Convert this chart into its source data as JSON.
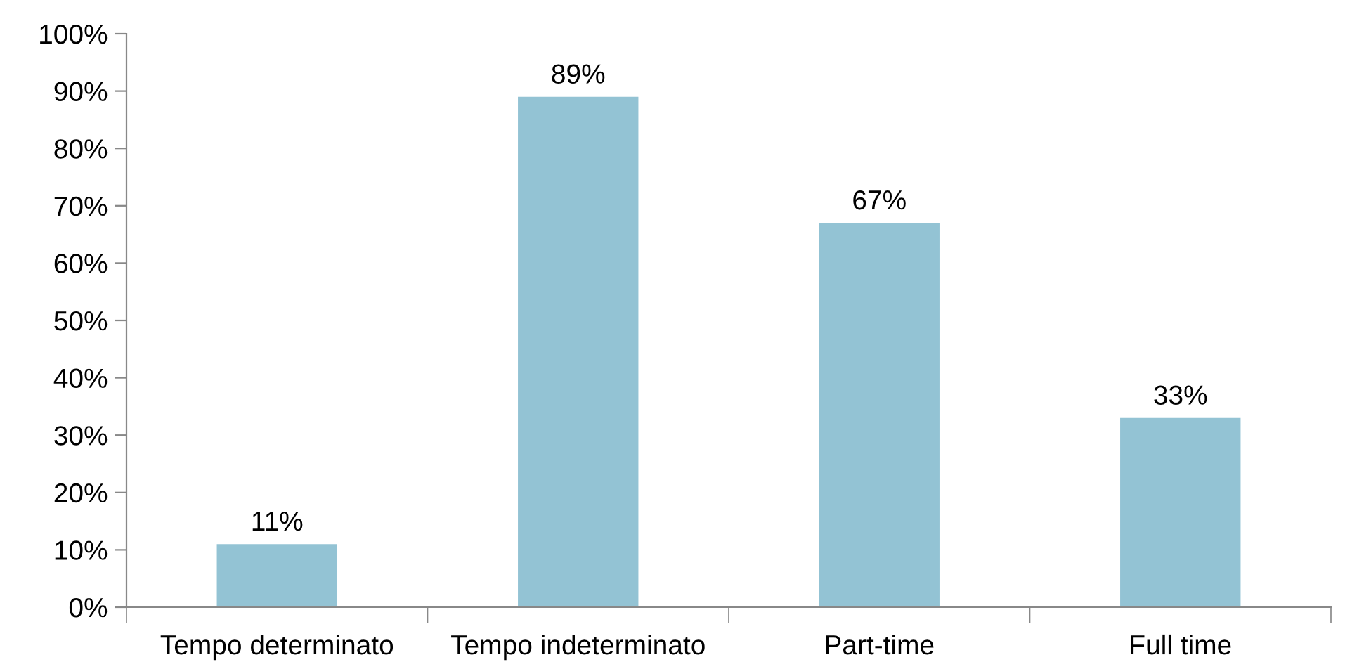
{
  "chart_data": {
    "type": "bar",
    "categories": [
      "Tempo determinato",
      "Tempo indeterminato",
      "Part-time",
      "Full time"
    ],
    "values": [
      11,
      89,
      67,
      33
    ],
    "value_labels": [
      "11%",
      "89%",
      "67%",
      "33%"
    ],
    "color": "#93c3d4",
    "ylim": [
      0,
      100
    ],
    "yticks": [
      {
        "value": 0,
        "label": "0%"
      },
      {
        "value": 10,
        "label": "10%"
      },
      {
        "value": 20,
        "label": "20%"
      },
      {
        "value": 30,
        "label": "30%"
      },
      {
        "value": 40,
        "label": "40%"
      },
      {
        "value": 50,
        "label": "50%"
      },
      {
        "value": 60,
        "label": "60%"
      },
      {
        "value": 70,
        "label": "70%"
      },
      {
        "value": 80,
        "label": "80%"
      },
      {
        "value": 90,
        "label": "90%"
      },
      {
        "value": 100,
        "label": "100%"
      }
    ],
    "grid": false,
    "legend": false
  }
}
